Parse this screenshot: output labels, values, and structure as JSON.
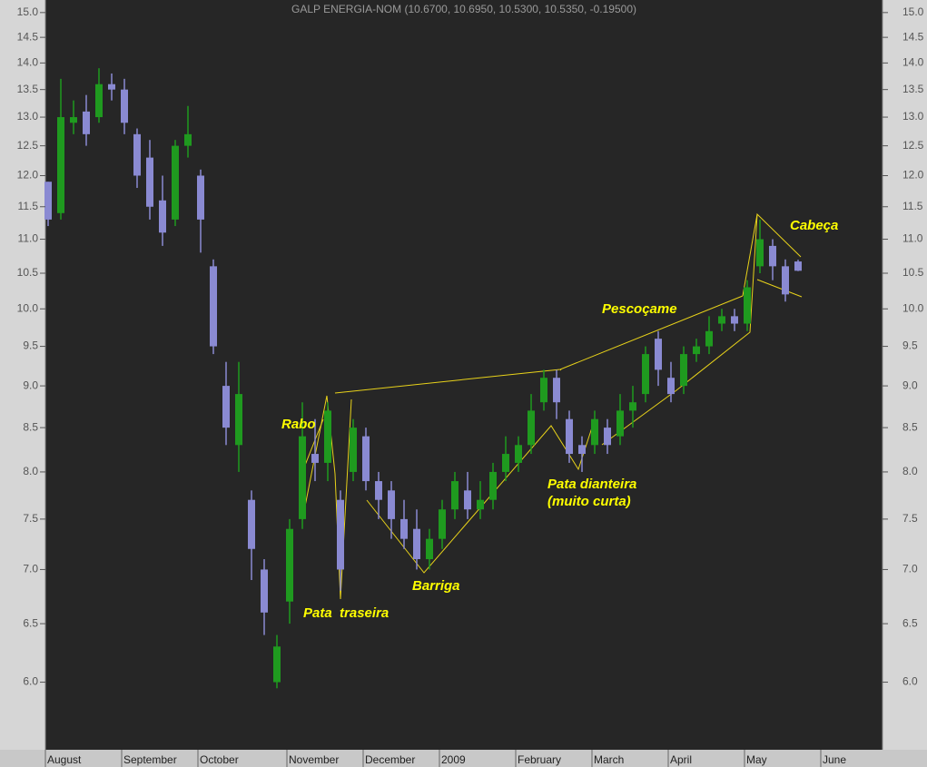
{
  "chart_data": {
    "type": "candlestick",
    "title": "GALP ENERGIA-NOM (10.6700, 10.6950, 10.5300, 10.5350, -0.19500)",
    "categories": [
      "August",
      null,
      null,
      null,
      null,
      null,
      "September",
      null,
      null,
      null,
      null,
      null,
      "October",
      null,
      null,
      null,
      null,
      null,
      null,
      "November",
      null,
      null,
      null,
      null,
      null,
      "December",
      null,
      null,
      null,
      null,
      null,
      "2009",
      null,
      null,
      null,
      null,
      null,
      "February",
      null,
      null,
      null,
      null,
      null,
      "March",
      null,
      null,
      null,
      null,
      null,
      "April",
      null,
      null,
      null,
      null,
      null,
      "May",
      null,
      null,
      null,
      null,
      null,
      "June"
    ],
    "open": [
      11.9,
      11.4,
      12.9,
      13.1,
      13.0,
      13.6,
      13.5,
      12.7,
      12.3,
      11.6,
      11.3,
      12.5,
      12.0,
      10.6,
      9.0,
      8.3,
      7.7,
      7.0,
      6.0,
      6.7,
      7.5,
      8.2,
      8.1,
      7.7,
      8.0,
      8.4,
      7.9,
      7.8,
      7.5,
      7.4,
      7.1,
      7.3,
      7.6,
      7.8,
      7.6,
      7.7,
      8.0,
      8.1,
      8.3,
      8.8,
      9.1,
      8.6,
      8.3,
      8.3,
      8.5,
      8.4,
      8.7,
      8.9,
      9.6,
      9.1,
      9.0,
      9.4,
      9.5,
      9.8,
      9.9,
      9.8,
      10.6,
      10.9,
      10.6,
      10.67,
      null,
      null
    ],
    "high": [
      11.9,
      13.7,
      13.3,
      13.4,
      13.9,
      13.8,
      13.7,
      12.8,
      12.6,
      12.0,
      12.6,
      13.2,
      12.1,
      10.7,
      9.3,
      9.3,
      7.8,
      7.1,
      6.4,
      7.5,
      8.8,
      8.6,
      8.8,
      7.8,
      8.6,
      8.5,
      8.0,
      7.9,
      7.7,
      7.6,
      7.4,
      7.7,
      8.0,
      8.0,
      7.9,
      8.1,
      8.4,
      8.4,
      8.9,
      9.2,
      9.2,
      8.7,
      8.4,
      8.7,
      8.6,
      8.9,
      9.0,
      9.5,
      9.7,
      9.3,
      9.5,
      9.6,
      9.9,
      10.0,
      10.0,
      10.4,
      11.3,
      11.0,
      10.7,
      10.695,
      null,
      null
    ],
    "low": [
      11.2,
      11.3,
      12.7,
      12.5,
      12.9,
      13.3,
      12.7,
      11.8,
      11.3,
      10.9,
      11.2,
      12.3,
      10.8,
      9.4,
      8.3,
      8.0,
      6.9,
      6.4,
      5.95,
      6.5,
      7.4,
      7.9,
      7.9,
      6.8,
      7.9,
      7.8,
      7.5,
      7.3,
      7.2,
      7.0,
      7.0,
      7.2,
      7.5,
      7.5,
      7.5,
      7.6,
      7.9,
      8.0,
      8.2,
      8.7,
      8.6,
      8.1,
      8.0,
      8.2,
      8.2,
      8.3,
      8.5,
      8.8,
      9.0,
      8.8,
      8.9,
      9.3,
      9.4,
      9.7,
      9.7,
      9.7,
      10.5,
      10.4,
      10.1,
      10.53,
      null,
      null
    ],
    "close": [
      11.3,
      13.0,
      13.0,
      12.7,
      13.6,
      13.5,
      12.9,
      12.0,
      11.5,
      11.1,
      12.5,
      12.7,
      11.3,
      9.5,
      8.5,
      8.9,
      7.2,
      6.6,
      6.3,
      7.4,
      8.4,
      8.1,
      8.7,
      7.0,
      8.5,
      7.9,
      7.7,
      7.5,
      7.3,
      7.1,
      7.3,
      7.6,
      7.9,
      7.6,
      7.7,
      8.0,
      8.2,
      8.3,
      8.7,
      9.1,
      8.8,
      8.2,
      8.2,
      8.6,
      8.3,
      8.7,
      8.8,
      9.4,
      9.2,
      8.9,
      9.4,
      9.5,
      9.7,
      9.9,
      9.8,
      10.3,
      11.0,
      10.6,
      10.2,
      10.535,
      null,
      null
    ],
    "up_color": "#1f9a1f",
    "down_color": "#8a8ad2",
    "ylim": [
      5.47,
      15.26
    ],
    "log_scale": true,
    "yticks": [
      {
        "value": 6,
        "label": "6.0"
      },
      {
        "value": 6.5,
        "label": "6.5"
      },
      {
        "value": 7,
        "label": "7.0"
      },
      {
        "value": 7.5,
        "label": "7.5"
      },
      {
        "value": 8,
        "label": "8.0"
      },
      {
        "value": 8.5,
        "label": "8.5"
      },
      {
        "value": 9,
        "label": "9.0"
      },
      {
        "value": 9.5,
        "label": "9.5"
      },
      {
        "value": 10,
        "label": "10.0"
      },
      {
        "value": 10.5,
        "label": "10.5"
      },
      {
        "value": 11,
        "label": "11.0"
      },
      {
        "value": 11.5,
        "label": "11.5"
      },
      {
        "value": 12,
        "label": "12.0"
      },
      {
        "value": 12.5,
        "label": "12.5"
      },
      {
        "value": 13,
        "label": "13.0"
      },
      {
        "value": 13.5,
        "label": "13.5"
      },
      {
        "value": 14,
        "label": "14.0"
      },
      {
        "value": 14.5,
        "label": "14.5"
      },
      {
        "value": 15,
        "label": "15.0"
      }
    ],
    "annotations": [
      "Rabo",
      "Pata  traseira",
      "Barriga",
      "Pata dianteira",
      "(muito curta)",
      "Pescoçame",
      "Cabeça"
    ]
  }
}
